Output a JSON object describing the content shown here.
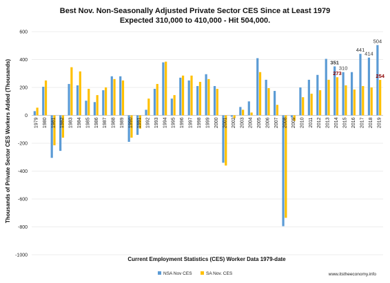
{
  "chart_data": {
    "type": "bar",
    "title": "Best  Nov. Non-Seasonally Adjusted Private Sector CES Since at Least 1979",
    "subtitle": "Expected 310,000 to 410,000 - Hit 504,000.",
    "xlabel": "Current Employment Statistics (CES) Worker Data 1979-date",
    "ylabel": "Thousands of Private Sector CES Workers Added (Thousands)",
    "ylim": [
      -1000,
      600
    ],
    "yticks": [
      -1000,
      -800,
      -600,
      -400,
      -200,
      0,
      200,
      400,
      600
    ],
    "grid": true,
    "legend_position": "bottom",
    "categories": [
      "1979",
      "1980",
      "1981",
      "1982",
      "1983",
      "1984",
      "1985",
      "1986",
      "1987",
      "1988",
      "1989",
      "1990",
      "1991",
      "1992",
      "1993",
      "1994",
      "1995",
      "1996",
      "1997",
      "1998",
      "1999",
      "2000",
      "2001",
      "2002",
      "2003",
      "2004",
      "2005",
      "2006",
      "2007",
      "2008",
      "2009",
      "2010",
      "2011",
      "2012",
      "2013",
      "2014",
      "2015",
      "2016",
      "2017",
      "2018",
      "2019"
    ],
    "series": [
      {
        "name": "NSA Nov CES",
        "color": "#5b9bd5",
        "values": [
          30,
          205,
          -305,
          -255,
          225,
          215,
          105,
          95,
          180,
          280,
          280,
          -190,
          -140,
          40,
          190,
          380,
          120,
          270,
          250,
          210,
          295,
          210,
          -340,
          -10,
          60,
          100,
          410,
          255,
          175,
          -795,
          -15,
          200,
          255,
          290,
          405,
          351,
          310,
          310,
          441,
          414,
          504
        ]
      },
      {
        "name": "SA Nov. CES",
        "color": "#ffc000",
        "values": [
          55,
          250,
          -215,
          -160,
          345,
          315,
          190,
          145,
          200,
          260,
          250,
          -160,
          -95,
          120,
          225,
          385,
          145,
          285,
          285,
          240,
          260,
          190,
          -360,
          -20,
          40,
          20,
          310,
          195,
          75,
          -735,
          -40,
          130,
          155,
          180,
          255,
          273,
          215,
          185,
          210,
          200,
          254
        ]
      }
    ],
    "data_labels": [
      {
        "category": "2014",
        "series": 0,
        "text": "351",
        "style": "bold"
      },
      {
        "category": "2014",
        "series": 1,
        "text": "273",
        "style": "red"
      },
      {
        "category": "2015",
        "series": 0,
        "text": "310",
        "style": "normal"
      },
      {
        "category": "2017",
        "series": 0,
        "text": "441",
        "style": "normal"
      },
      {
        "category": "2018",
        "series": 0,
        "text": "414",
        "style": "normal"
      },
      {
        "category": "2019",
        "series": 0,
        "text": "504",
        "style": "normal"
      },
      {
        "category": "2019",
        "series": 1,
        "text": "254",
        "style": "red"
      }
    ]
  },
  "credit": "www.itstheeconomy.info"
}
